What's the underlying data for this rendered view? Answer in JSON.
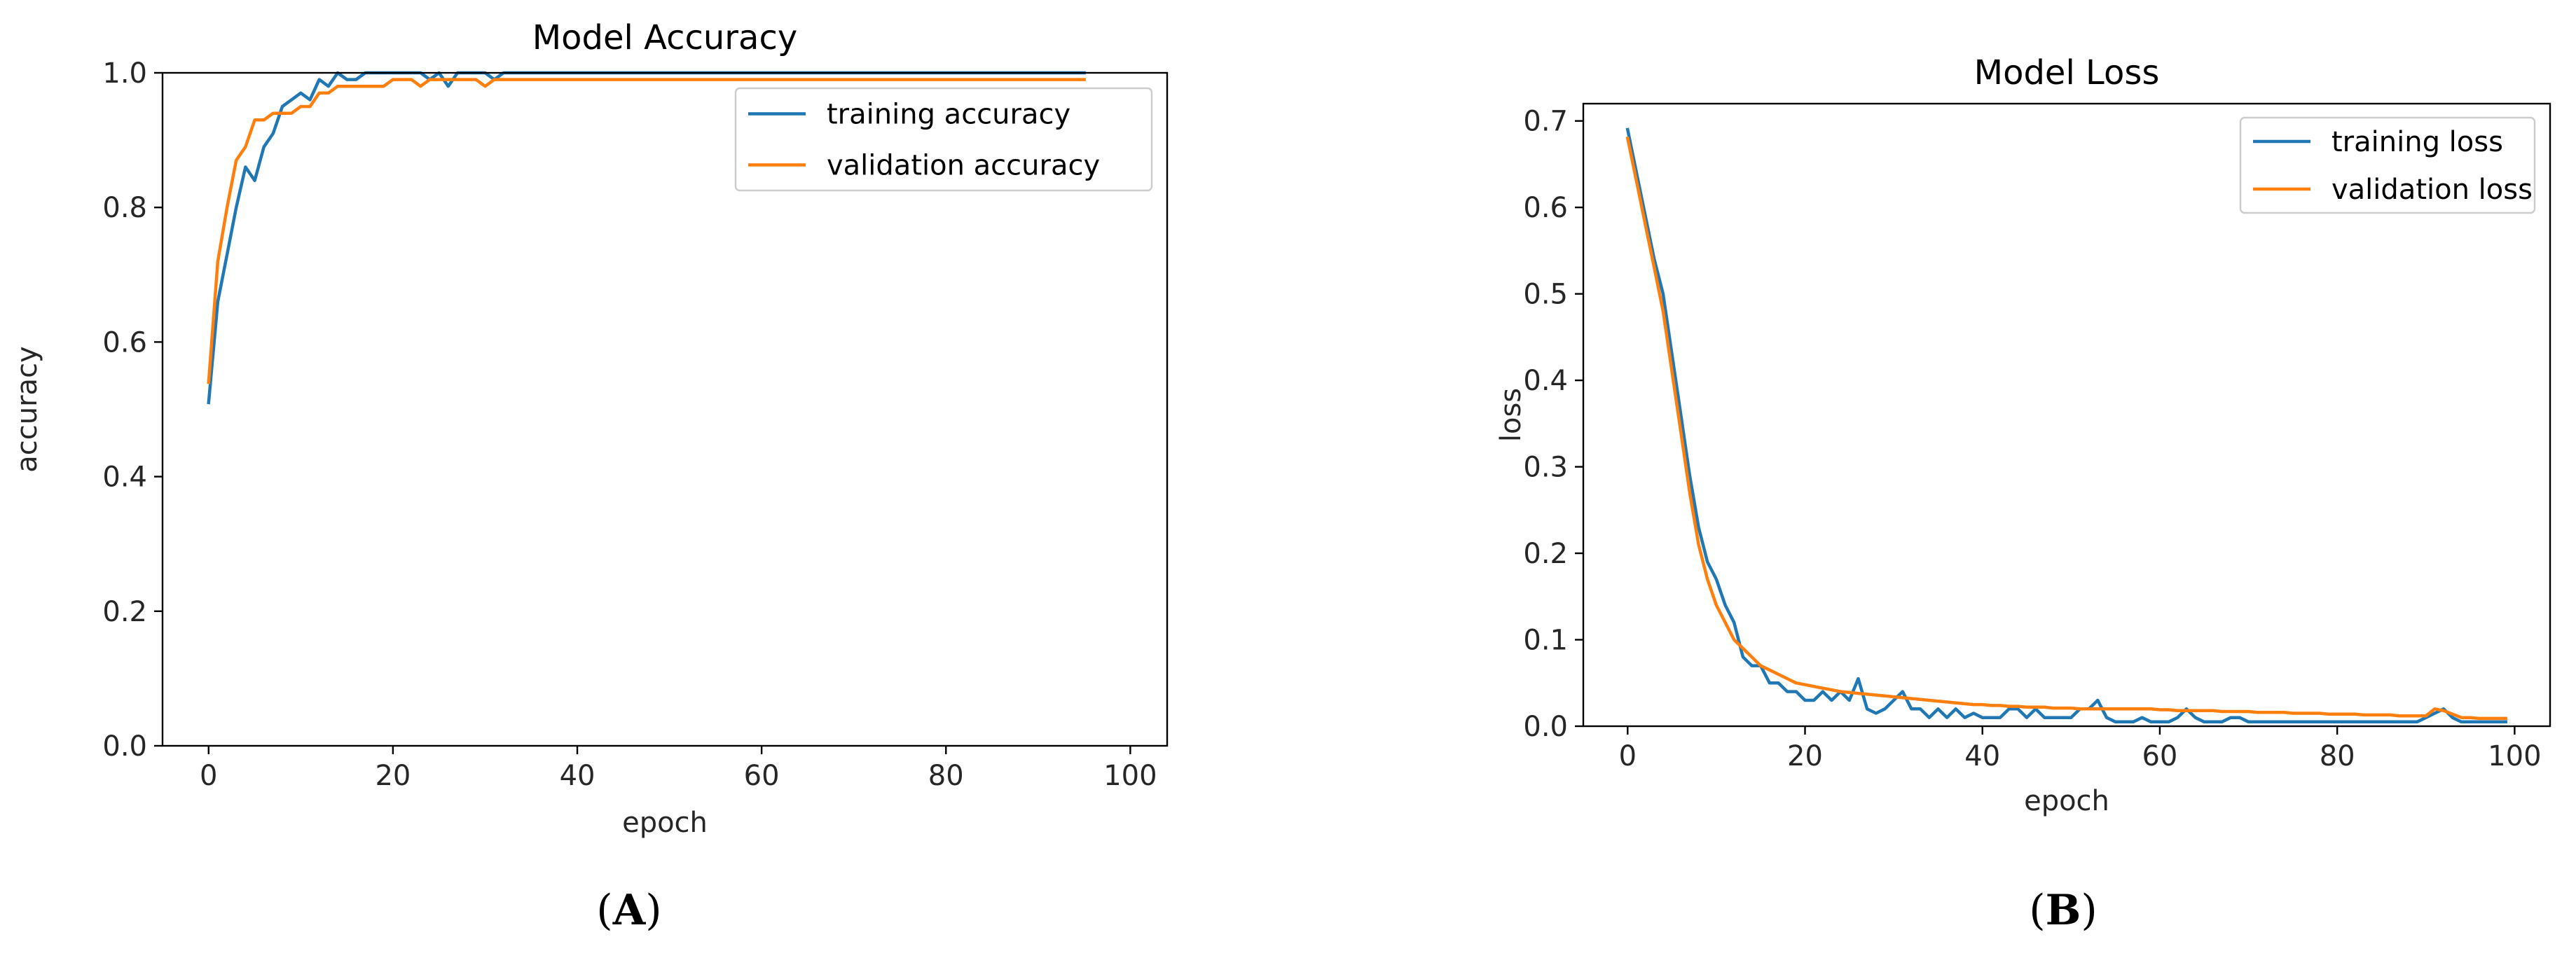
{
  "panel_labels": [
    "A",
    "B"
  ],
  "chart_data": [
    {
      "type": "line",
      "title": "Model Accuracy",
      "xlabel": "epoch",
      "ylabel": "accuracy",
      "xlim": [
        -5,
        104
      ],
      "ylim": [
        0,
        1.0
      ],
      "xticks": [
        0,
        20,
        40,
        60,
        80,
        100
      ],
      "yticks": [
        0.0,
        0.2,
        0.4,
        0.6,
        0.8,
        1.0
      ],
      "xtick_labels": [
        "0",
        "20",
        "40",
        "60",
        "80",
        "100"
      ],
      "ytick_labels": [
        "0.0",
        "0.2",
        "0.4",
        "0.6",
        "0.8",
        "1.0"
      ],
      "legend_position": "upper right",
      "grid": false,
      "series": [
        {
          "name": "training accuracy",
          "color": "#1f77b4",
          "x": [
            0,
            1,
            2,
            3,
            4,
            5,
            6,
            7,
            8,
            9,
            10,
            11,
            12,
            13,
            14,
            15,
            16,
            17,
            18,
            19,
            20,
            21,
            22,
            23,
            24,
            25,
            26,
            27,
            28,
            29,
            30,
            31,
            32,
            33,
            34,
            35,
            36,
            37,
            38,
            39,
            40,
            41,
            42,
            43,
            44,
            45,
            46,
            47,
            48,
            49,
            50,
            51,
            52,
            53,
            54,
            55,
            56,
            57,
            58,
            59,
            60,
            61,
            62,
            63,
            64,
            65,
            66,
            67,
            68,
            69,
            70,
            71,
            72,
            73,
            74,
            75,
            76,
            77,
            78,
            79,
            80,
            81,
            82,
            83,
            84,
            85,
            86,
            87,
            88,
            89,
            90,
            91,
            92,
            93,
            94,
            95
          ],
          "y": [
            0.51,
            0.66,
            0.73,
            0.8,
            0.86,
            0.84,
            0.89,
            0.91,
            0.95,
            0.96,
            0.97,
            0.96,
            0.99,
            0.98,
            1.0,
            0.99,
            0.99,
            1.0,
            1.0,
            1.0,
            1.0,
            1.0,
            1.0,
            1.0,
            0.99,
            1.0,
            0.98,
            1.0,
            1.0,
            1.0,
            1.0,
            0.99,
            1.0,
            1.0,
            1.0,
            1.0,
            1.0,
            1.0,
            1.0,
            1.0,
            1.0,
            1.0,
            1.0,
            1.0,
            1.0,
            1.0,
            1.0,
            1.0,
            1.0,
            1.0,
            1.0,
            1.0,
            1.0,
            1.0,
            1.0,
            1.0,
            1.0,
            1.0,
            1.0,
            1.0,
            1.0,
            1.0,
            1.0,
            1.0,
            1.0,
            1.0,
            1.0,
            1.0,
            1.0,
            1.0,
            1.0,
            1.0,
            1.0,
            1.0,
            1.0,
            1.0,
            1.0,
            1.0,
            1.0,
            1.0,
            1.0,
            1.0,
            1.0,
            1.0,
            1.0,
            1.0,
            1.0,
            1.0,
            1.0,
            1.0,
            1.0,
            1.0,
            1.0,
            1.0,
            1.0,
            1.0
          ]
        },
        {
          "name": "validation accuracy",
          "color": "#ff7f0e",
          "x": [
            0,
            1,
            2,
            3,
            4,
            5,
            6,
            7,
            8,
            9,
            10,
            11,
            12,
            13,
            14,
            15,
            16,
            17,
            18,
            19,
            20,
            21,
            22,
            23,
            24,
            25,
            26,
            27,
            28,
            29,
            30,
            31,
            32,
            33,
            34,
            35,
            36,
            37,
            38,
            39,
            40,
            41,
            42,
            43,
            44,
            45,
            46,
            47,
            48,
            49,
            50,
            51,
            52,
            53,
            54,
            55,
            56,
            57,
            58,
            59,
            60,
            61,
            62,
            63,
            64,
            65,
            66,
            67,
            68,
            69,
            70,
            71,
            72,
            73,
            74,
            75,
            76,
            77,
            78,
            79,
            80,
            81,
            82,
            83,
            84,
            85,
            86,
            87,
            88,
            89,
            90,
            91,
            92,
            93,
            94,
            95
          ],
          "y": [
            0.54,
            0.72,
            0.8,
            0.87,
            0.89,
            0.93,
            0.93,
            0.94,
            0.94,
            0.94,
            0.95,
            0.95,
            0.97,
            0.97,
            0.98,
            0.98,
            0.98,
            0.98,
            0.98,
            0.98,
            0.99,
            0.99,
            0.99,
            0.98,
            0.99,
            0.99,
            0.99,
            0.99,
            0.99,
            0.99,
            0.98,
            0.99,
            0.99,
            0.99,
            0.99,
            0.99,
            0.99,
            0.99,
            0.99,
            0.99,
            0.99,
            0.99,
            0.99,
            0.99,
            0.99,
            0.99,
            0.99,
            0.99,
            0.99,
            0.99,
            0.99,
            0.99,
            0.99,
            0.99,
            0.99,
            0.99,
            0.99,
            0.99,
            0.99,
            0.99,
            0.99,
            0.99,
            0.99,
            0.99,
            0.99,
            0.99,
            0.99,
            0.99,
            0.99,
            0.99,
            0.99,
            0.99,
            0.99,
            0.99,
            0.99,
            0.99,
            0.99,
            0.99,
            0.99,
            0.99,
            0.99,
            0.99,
            0.99,
            0.99,
            0.99,
            0.99,
            0.99,
            0.99,
            0.99,
            0.99,
            0.99,
            0.99,
            0.99,
            0.99,
            0.99,
            0.99
          ]
        }
      ]
    },
    {
      "type": "line",
      "title": "Model Loss",
      "xlabel": "epoch",
      "ylabel": "loss",
      "xlim": [
        -5,
        104
      ],
      "ylim": [
        0,
        0.72
      ],
      "xticks": [
        0,
        20,
        40,
        60,
        80,
        100
      ],
      "yticks": [
        0.0,
        0.1,
        0.2,
        0.3,
        0.4,
        0.5,
        0.6,
        0.7
      ],
      "xtick_labels": [
        "0",
        "20",
        "40",
        "60",
        "80",
        "100"
      ],
      "ytick_labels": [
        "0.0",
        "0.1",
        "0.2",
        "0.3",
        "0.4",
        "0.5",
        "0.6",
        "0.7"
      ],
      "legend_position": "upper right",
      "grid": false,
      "series": [
        {
          "name": "training loss",
          "color": "#1f77b4",
          "x": [
            0,
            1,
            2,
            3,
            4,
            5,
            6,
            7,
            8,
            9,
            10,
            11,
            12,
            13,
            14,
            15,
            16,
            17,
            18,
            19,
            20,
            21,
            22,
            23,
            24,
            25,
            26,
            27,
            28,
            29,
            30,
            31,
            32,
            33,
            34,
            35,
            36,
            37,
            38,
            39,
            40,
            41,
            42,
            43,
            44,
            45,
            46,
            47,
            48,
            49,
            50,
            51,
            52,
            53,
            54,
            55,
            56,
            57,
            58,
            59,
            60,
            61,
            62,
            63,
            64,
            65,
            66,
            67,
            68,
            69,
            70,
            71,
            72,
            73,
            74,
            75,
            76,
            77,
            78,
            79,
            80,
            81,
            82,
            83,
            84,
            85,
            86,
            87,
            88,
            89,
            90,
            91,
            92,
            93,
            94,
            95,
            96,
            97,
            98,
            99
          ],
          "y": [
            0.69,
            0.64,
            0.59,
            0.54,
            0.5,
            0.43,
            0.36,
            0.29,
            0.23,
            0.19,
            0.17,
            0.14,
            0.12,
            0.08,
            0.07,
            0.07,
            0.05,
            0.05,
            0.04,
            0.04,
            0.03,
            0.03,
            0.04,
            0.03,
            0.04,
            0.03,
            0.055,
            0.02,
            0.015,
            0.02,
            0.03,
            0.04,
            0.02,
            0.02,
            0.01,
            0.02,
            0.01,
            0.02,
            0.01,
            0.015,
            0.01,
            0.01,
            0.01,
            0.02,
            0.02,
            0.01,
            0.02,
            0.01,
            0.01,
            0.01,
            0.01,
            0.02,
            0.02,
            0.03,
            0.01,
            0.005,
            0.005,
            0.005,
            0.01,
            0.005,
            0.005,
            0.005,
            0.01,
            0.02,
            0.01,
            0.005,
            0.005,
            0.005,
            0.01,
            0.01,
            0.005,
            0.005,
            0.005,
            0.005,
            0.005,
            0.005,
            0.005,
            0.005,
            0.005,
            0.005,
            0.005,
            0.005,
            0.005,
            0.005,
            0.005,
            0.005,
            0.005,
            0.005,
            0.005,
            0.005,
            0.01,
            0.015,
            0.02,
            0.01,
            0.005,
            0.005,
            0.005,
            0.005,
            0.005,
            0.005
          ]
        },
        {
          "name": "validation loss",
          "color": "#ff7f0e",
          "x": [
            0,
            1,
            2,
            3,
            4,
            5,
            6,
            7,
            8,
            9,
            10,
            11,
            12,
            13,
            14,
            15,
            16,
            17,
            18,
            19,
            20,
            21,
            22,
            23,
            24,
            25,
            26,
            27,
            28,
            29,
            30,
            31,
            32,
            33,
            34,
            35,
            36,
            37,
            38,
            39,
            40,
            41,
            42,
            43,
            44,
            45,
            46,
            47,
            48,
            49,
            50,
            51,
            52,
            53,
            54,
            55,
            56,
            57,
            58,
            59,
            60,
            61,
            62,
            63,
            64,
            65,
            66,
            67,
            68,
            69,
            70,
            71,
            72,
            73,
            74,
            75,
            76,
            77,
            78,
            79,
            80,
            81,
            82,
            83,
            84,
            85,
            86,
            87,
            88,
            89,
            90,
            91,
            92,
            93,
            94,
            95,
            96,
            97,
            98,
            99
          ],
          "y": [
            0.68,
            0.63,
            0.58,
            0.53,
            0.48,
            0.41,
            0.34,
            0.27,
            0.21,
            0.17,
            0.14,
            0.12,
            0.1,
            0.09,
            0.08,
            0.07,
            0.065,
            0.06,
            0.055,
            0.05,
            0.048,
            0.046,
            0.044,
            0.042,
            0.04,
            0.039,
            0.038,
            0.037,
            0.036,
            0.035,
            0.034,
            0.033,
            0.032,
            0.031,
            0.03,
            0.029,
            0.028,
            0.027,
            0.026,
            0.025,
            0.025,
            0.024,
            0.024,
            0.023,
            0.023,
            0.022,
            0.022,
            0.022,
            0.021,
            0.021,
            0.021,
            0.02,
            0.02,
            0.02,
            0.02,
            0.02,
            0.02,
            0.02,
            0.02,
            0.02,
            0.019,
            0.019,
            0.018,
            0.018,
            0.018,
            0.018,
            0.018,
            0.017,
            0.017,
            0.017,
            0.017,
            0.016,
            0.016,
            0.016,
            0.016,
            0.015,
            0.015,
            0.015,
            0.015,
            0.014,
            0.014,
            0.014,
            0.014,
            0.013,
            0.013,
            0.013,
            0.013,
            0.012,
            0.012,
            0.012,
            0.012,
            0.02,
            0.018,
            0.014,
            0.01,
            0.01,
            0.009,
            0.009,
            0.009,
            0.009
          ]
        }
      ]
    }
  ]
}
